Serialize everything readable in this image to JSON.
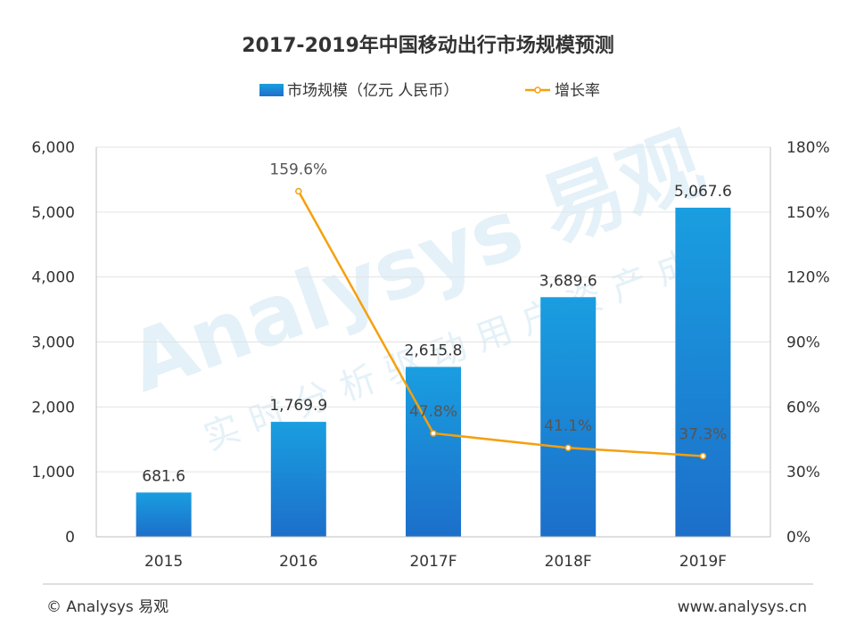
{
  "chart_data": {
    "type": "bar+line",
    "title": "2017-2019年中国移动出行市场规模预测",
    "categories": [
      "2015",
      "2016",
      "2017F",
      "2018F",
      "2019F"
    ],
    "series": [
      {
        "name": "市场规模（亿元 人民币）",
        "type": "bar",
        "axis": "left",
        "values": [
          681.6,
          1769.9,
          2615.8,
          3689.6,
          5067.6
        ],
        "labels": [
          "681.6",
          "1,769.9",
          "2,615.8",
          "3,689.6",
          "5,067.6"
        ],
        "color": "#1a8ad4"
      },
      {
        "name": "增长率",
        "type": "line",
        "axis": "right",
        "values": [
          null,
          159.6,
          47.8,
          41.1,
          37.3
        ],
        "labels": [
          "",
          "159.6%",
          "47.8%",
          "41.1%",
          "37.3%"
        ],
        "color": "#f5a00e"
      }
    ],
    "y_left": {
      "lim": [
        0,
        6000
      ],
      "ticks": [
        "0",
        "1,000",
        "2,000",
        "3,000",
        "4,000",
        "5,000",
        "6,000"
      ]
    },
    "y_right": {
      "lim": [
        0,
        180
      ],
      "ticks": [
        "0%",
        "30%",
        "60%",
        "90%",
        "120%",
        "150%",
        "180%"
      ]
    },
    "grid": true,
    "legend": "top-center"
  },
  "watermark": {
    "brand": "Analysys",
    "brand_cn": "易观",
    "slogan": "实时分析驱动用户资产成"
  },
  "footer": {
    "copyright": "© Analysys 易观",
    "website": "www.analysys.cn"
  }
}
